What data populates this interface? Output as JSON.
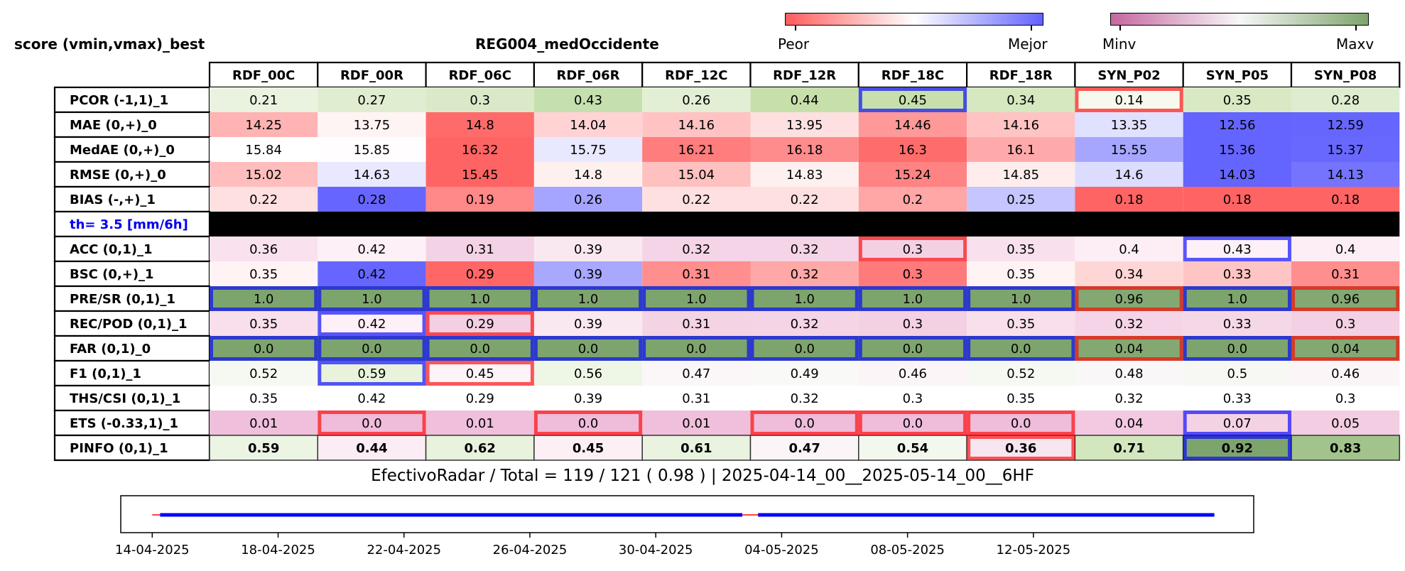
{
  "header": {
    "left_title": "score (vmin,vmax)_best",
    "center_title": "REG004_medOccidente"
  },
  "colorbar_score": {
    "low_label": "Peor",
    "high_label": "Mejor",
    "colors": [
      "#ff5c5c",
      "#ffffff",
      "#6262ff"
    ]
  },
  "colorbar_value": {
    "low_label": "Minv",
    "high_label": "Maxv",
    "colors": [
      "#c467a0",
      "#f7f7f7",
      "#7ea46d"
    ]
  },
  "chart_data": [
    {
      "type": "heatmap",
      "columns": [
        "RDF_00C",
        "RDF_00R",
        "RDF_06C",
        "RDF_06R",
        "RDF_12C",
        "RDF_12R",
        "RDF_18C",
        "RDF_18R",
        "SYN_P02",
        "SYN_P05",
        "SYN_P08"
      ],
      "rows": [
        {
          "label": "PCOR (-1,1)_1",
          "values": [
            "0.21",
            "0.27",
            "0.3",
            "0.43",
            "0.26",
            "0.44",
            "0.45",
            "0.34",
            "0.14",
            "0.35",
            "0.28"
          ],
          "colors": [
            "#eaf3e0",
            "#e0edd0",
            "#daeac8",
            "#c6dfae",
            "#e3efd5",
            "#c7e0ab",
            "#c7e0ab",
            "#d5e8bf",
            "#f6f9ee",
            "#d8e9c4",
            "#deedd0"
          ],
          "highlight": {
            "6": "blue",
            "8": "red"
          }
        },
        {
          "label": "MAE (0,+)_0",
          "values": [
            "14.25",
            "13.75",
            "14.8",
            "14.04",
            "14.16",
            "13.95",
            "14.46",
            "14.16",
            "13.35",
            "12.56",
            "12.59"
          ],
          "colors": [
            "#ffb3b3",
            "#fff4f4",
            "#ff6b6b",
            "#ffd3d3",
            "#ffc3c3",
            "#ffe0e0",
            "#ff9898",
            "#ffc3c3",
            "#e0e0ff",
            "#6464ff",
            "#6666ff"
          ],
          "highlight": {}
        },
        {
          "label": "MedAE (0,+)_0",
          "values": [
            "15.84",
            "15.85",
            "16.32",
            "15.75",
            "16.21",
            "16.18",
            "16.3",
            "16.1",
            "15.55",
            "15.36",
            "15.37"
          ],
          "colors": [
            "#ffffff",
            "#fffdfd",
            "#ff6464",
            "#e8e8ff",
            "#ff7d7d",
            "#ff8c8c",
            "#ff6c6c",
            "#ffaaaa",
            "#a6a6ff",
            "#6464ff",
            "#6868ff"
          ],
          "highlight": {}
        },
        {
          "label": "RMSE (0,+)_0",
          "values": [
            "15.02",
            "14.63",
            "15.45",
            "14.8",
            "15.04",
            "14.83",
            "15.24",
            "14.85",
            "14.6",
            "14.03",
            "14.13"
          ],
          "colors": [
            "#ffbdbd",
            "#e8e8ff",
            "#ff6464",
            "#fff0f0",
            "#ffc0c0",
            "#fff0f0",
            "#ff8383",
            "#ffeded",
            "#dcdcff",
            "#6464ff",
            "#7474ff"
          ],
          "highlight": {}
        },
        {
          "label": "BIAS (-,+)_1",
          "values": [
            "0.22",
            "0.28",
            "0.19",
            "0.26",
            "0.22",
            "0.22",
            "0.2",
            "0.25",
            "0.18",
            "0.18",
            "0.18"
          ],
          "colors": [
            "#ffe0e0",
            "#6666ff",
            "#ff8888",
            "#a5a5ff",
            "#ffe0e0",
            "#ffe0e0",
            "#ffa6a6",
            "#c5c5ff",
            "#ff6464",
            "#ff6464",
            "#ff6464"
          ],
          "highlight": {}
        },
        {
          "label": "th= 3.5 [mm/6h]",
          "separator": true,
          "values": [],
          "colors": [],
          "highlight": {}
        },
        {
          "label": "ACC (0,1)_1",
          "values": [
            "0.36",
            "0.42",
            "0.31",
            "0.39",
            "0.32",
            "0.32",
            "0.3",
            "0.35",
            "0.4",
            "0.43",
            "0.4"
          ],
          "colors": [
            "#f9e1ee",
            "#fdf0f6",
            "#f4d2e5",
            "#fae8f1",
            "#f4d4e6",
            "#f4d4e6",
            "#f3d0e4",
            "#f8e0ec",
            "#fdeef5",
            "#fdf1f7",
            "#fdeef5"
          ],
          "highlight": {
            "6": "red",
            "9": "blue"
          }
        },
        {
          "label": "BSC (0,+)_1",
          "values": [
            "0.35",
            "0.42",
            "0.29",
            "0.39",
            "0.31",
            "0.32",
            "0.3",
            "0.35",
            "0.34",
            "0.33",
            "0.31"
          ],
          "colors": [
            "#fff3f3",
            "#6666ff",
            "#ff6666",
            "#a8a8ff",
            "#ff8e8e",
            "#ffa8a8",
            "#ff7a7a",
            "#fff3f3",
            "#ffd6d6",
            "#ffc4c4",
            "#ff8e8e"
          ],
          "highlight": {}
        },
        {
          "label": "PRE/SR (0,1)_1",
          "values": [
            "1.0",
            "1.0",
            "1.0",
            "1.0",
            "1.0",
            "1.0",
            "1.0",
            "1.0",
            "0.96",
            "1.0",
            "0.96"
          ],
          "colors": [
            "#7ea46d",
            "#7ea46d",
            "#7ea46d",
            "#7ea46d",
            "#7ea46d",
            "#7ea46d",
            "#7ea46d",
            "#7ea46d",
            "#84a872",
            "#7ea46d",
            "#84a872"
          ],
          "highlight": {
            "0": "blue",
            "1": "blue",
            "2": "blue",
            "3": "blue",
            "4": "blue",
            "5": "blue",
            "6": "blue",
            "7": "blue",
            "8": "red",
            "9": "blue",
            "10": "red"
          }
        },
        {
          "label": "REC/POD (0,1)_1",
          "values": [
            "0.35",
            "0.42",
            "0.29",
            "0.39",
            "0.31",
            "0.32",
            "0.3",
            "0.35",
            "0.32",
            "0.33",
            "0.3"
          ],
          "colors": [
            "#f8dfeb",
            "#fdf0f6",
            "#f3cfe3",
            "#fae8f1",
            "#f4d3e5",
            "#f4d4e6",
            "#f3d0e4",
            "#f8dfeb",
            "#f4d4e6",
            "#f5d8e8",
            "#f3d0e4"
          ],
          "highlight": {
            "1": "blue",
            "2": "red"
          }
        },
        {
          "label": "FAR (0,1)_0",
          "values": [
            "0.0",
            "0.0",
            "0.0",
            "0.0",
            "0.0",
            "0.0",
            "0.0",
            "0.0",
            "0.04",
            "0.0",
            "0.04"
          ],
          "colors": [
            "#7ea46d",
            "#7ea46d",
            "#7ea46d",
            "#7ea46d",
            "#7ea46d",
            "#7ea46d",
            "#7ea46d",
            "#7ea46d",
            "#84a872",
            "#7ea46d",
            "#84a872"
          ],
          "highlight": {
            "0": "blue",
            "1": "blue",
            "2": "blue",
            "3": "blue",
            "4": "blue",
            "5": "blue",
            "6": "blue",
            "7": "blue",
            "8": "red",
            "9": "blue",
            "10": "red"
          }
        },
        {
          "label": "F1 (0,1)_1",
          "values": [
            "0.52",
            "0.59",
            "0.45",
            "0.56",
            "0.47",
            "0.49",
            "0.46",
            "0.52",
            "0.48",
            "0.5",
            "0.46"
          ],
          "colors": [
            "#f6f9f1",
            "#e9f3dc",
            "#fdf4f8",
            "#eef6e6",
            "#fbf6f8",
            "#f9f9f7",
            "#fcf5f8",
            "#f6f9f1",
            "#faf7f8",
            "#f7f8f4",
            "#fcf5f8"
          ],
          "highlight": {
            "1": "blue",
            "2": "red"
          }
        },
        {
          "label": "THS/CSI (0,1)_1",
          "values": [
            "0.35",
            "0.42",
            "0.29",
            "0.39",
            "0.31",
            "0.32",
            "0.3",
            "0.35",
            "0.32",
            "0.33",
            "0.3"
          ],
          "colors": [
            "#ffffff",
            "#ffffff",
            "#ffffff",
            "#ffffff",
            "#ffffff",
            "#ffffff",
            "#ffffff",
            "#ffffff",
            "#ffffff",
            "#ffffff",
            "#ffffff"
          ],
          "highlight": {}
        },
        {
          "label": "ETS (-0.33,1)_1",
          "values": [
            "0.01",
            "0.0",
            "0.01",
            "0.0",
            "0.01",
            "0.0",
            "0.0",
            "0.0",
            "0.04",
            "0.07",
            "0.05"
          ],
          "colors": [
            "#efbfdb",
            "#efbcd9",
            "#efbfdb",
            "#efbcd9",
            "#efbfdb",
            "#efbcd9",
            "#efbcd9",
            "#efbcd9",
            "#f2c9e0",
            "#f4d2e5",
            "#f3cde2"
          ],
          "highlight": {
            "1": "red",
            "3": "red",
            "5": "red",
            "6": "red",
            "7": "red",
            "9": "blue"
          }
        },
        {
          "label": "PINFO (0,1)_1",
          "values": [
            "0.59",
            "0.44",
            "0.62",
            "0.45",
            "0.61",
            "0.47",
            "0.54",
            "0.36",
            "0.71",
            "0.92",
            "0.83"
          ],
          "colors": [
            "#ecf5e4",
            "#fcedf4",
            "#e8f2dc",
            "#fcf0f5",
            "#eaf3df",
            "#fbf5f8",
            "#f3f8ee",
            "#f7e6ef",
            "#d2e7be",
            "#7ea46d",
            "#a2c48c"
          ],
          "highlight": {
            "7": "red",
            "9": "blue"
          },
          "bold": true
        }
      ]
    },
    {
      "type": "line",
      "title": "EfectivoRadar / Total  =  119 / 121 ( 0.98 ) | 2025-04-14_00__2025-05-14_00__6HF",
      "x_tick_labels": [
        "14-04-2025",
        "18-04-2025",
        "22-04-2025",
        "26-04-2025",
        "30-04-2025",
        "04-05-2025",
        "08-05-2025",
        "12-05-2025"
      ],
      "x_ticks": [
        "2025-04-14",
        "2025-04-18",
        "2025-04-22",
        "2025-04-26",
        "2025-04-30",
        "2025-05-04",
        "2025-05-08",
        "2025-05-12"
      ],
      "xlim": [
        "2025-04-13",
        "2025-05-19"
      ],
      "series": [
        {
          "color": "#0000ff",
          "segments": [
            [
              "2025-04-14T06:00",
              "2025-05-02T18:00"
            ],
            [
              "2025-05-03T06:00",
              "2025-05-17T18:00"
            ]
          ]
        },
        {
          "color": "#ff4444",
          "segments": [
            [
              "2025-04-14T00:00",
              "2025-04-14T06:00"
            ],
            [
              "2025-05-02T18:00",
              "2025-05-03T06:00"
            ]
          ]
        }
      ]
    }
  ]
}
